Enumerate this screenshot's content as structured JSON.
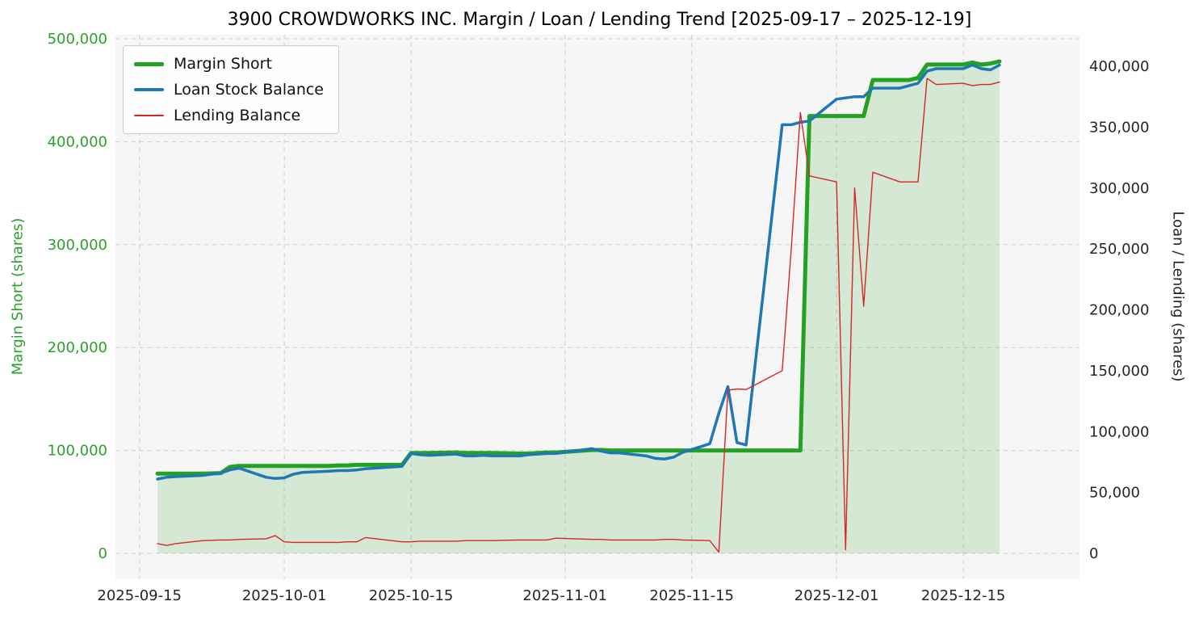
{
  "chart_data": {
    "type": "line",
    "title": "3900 CROWDWORKS INC. Margin / Loan / Lending Trend [2025-09-17 – 2025-12-19]",
    "plot_bg": "#f6f6f6",
    "grid": {
      "dashed": true,
      "color": "#cccccc"
    },
    "legend_position": "upper-left",
    "x_ticks": [
      "2025-09-15",
      "2025-10-01",
      "2025-10-15",
      "2025-11-01",
      "2025-11-15",
      "2025-12-01",
      "2025-12-15"
    ],
    "left_axis": {
      "label": "Margin Short (shares)",
      "color": "#2ca02c",
      "range": [
        0,
        500000
      ],
      "ticks": [
        0,
        100000,
        200000,
        300000,
        400000,
        500000
      ],
      "tick_labels": [
        "0",
        "100,000",
        "200,000",
        "300,000",
        "400,000",
        "500,000"
      ]
    },
    "right_axis": {
      "label": "Loan / Lending (shares)",
      "color": "#262626",
      "range": [
        0,
        400000
      ],
      "ticks": [
        0,
        50000,
        100000,
        150000,
        200000,
        250000,
        300000,
        350000,
        400000
      ],
      "tick_labels": [
        "0",
        "50,000",
        "100,000",
        "150,000",
        "200,000",
        "250,000",
        "300,000",
        "350,000",
        "400,000"
      ]
    },
    "x": [
      "2025-09-17",
      "2025-09-18",
      "2025-09-19",
      "2025-09-22",
      "2025-09-24",
      "2025-09-25",
      "2025-09-26",
      "2025-09-29",
      "2025-09-30",
      "2025-10-01",
      "2025-10-02",
      "2025-10-03",
      "2025-10-06",
      "2025-10-07",
      "2025-10-08",
      "2025-10-09",
      "2025-10-10",
      "2025-10-14",
      "2025-10-15",
      "2025-10-16",
      "2025-10-17",
      "2025-10-20",
      "2025-10-21",
      "2025-10-22",
      "2025-10-23",
      "2025-10-24",
      "2025-10-27",
      "2025-10-28",
      "2025-10-29",
      "2025-10-30",
      "2025-10-31",
      "2025-11-04",
      "2025-11-05",
      "2025-11-06",
      "2025-11-07",
      "2025-11-10",
      "2025-11-11",
      "2025-11-12",
      "2025-11-13",
      "2025-11-14",
      "2025-11-17",
      "2025-11-18",
      "2025-11-19",
      "2025-11-20",
      "2025-11-21",
      "2025-11-25",
      "2025-11-26",
      "2025-11-27",
      "2025-11-28",
      "2025-12-01",
      "2025-12-02",
      "2025-12-03",
      "2025-12-04",
      "2025-12-05",
      "2025-12-08",
      "2025-12-09",
      "2025-12-10",
      "2025-12-11",
      "2025-12-12",
      "2025-12-15",
      "2025-12-16",
      "2025-12-17",
      "2025-12-18",
      "2025-12-19"
    ],
    "series": [
      {
        "name": "Margin Short",
        "axis": "left",
        "color": "#23a123",
        "width": 5,
        "fill": true,
        "fill_opacity": 0.16,
        "values": [
          77500,
          77500,
          77500,
          77500,
          78000,
          84000,
          85000,
          85000,
          85000,
          85000,
          85000,
          85000,
          85000,
          85500,
          85500,
          86000,
          86000,
          86000,
          97500,
          97500,
          97500,
          98000,
          97500,
          97500,
          97500,
          97500,
          97000,
          97000,
          97500,
          98000,
          98000,
          100500,
          100500,
          100000,
          100000,
          100000,
          100000,
          100000,
          100000,
          100000,
          100000,
          100000,
          100000,
          100000,
          100000,
          100000,
          100000,
          100000,
          425000,
          425000,
          425000,
          425000,
          425000,
          460000,
          460000,
          460000,
          462000,
          475000,
          475000,
          475000,
          477000,
          475000,
          476000,
          478000
        ]
      },
      {
        "name": "Loan Stock Balance",
        "axis": "right",
        "color": "#1f77b4",
        "width": 3.5,
        "fill": false,
        "fill_opacity": 0,
        "values": [
          61000,
          62500,
          63000,
          64000,
          66000,
          68500,
          70000,
          62500,
          61500,
          62000,
          65000,
          66500,
          67500,
          68000,
          68000,
          68500,
          69500,
          71500,
          82000,
          81000,
          80500,
          81500,
          80000,
          80000,
          80500,
          80000,
          80000,
          81000,
          81500,
          82000,
          82000,
          86000,
          84000,
          82500,
          82500,
          80000,
          78000,
          77500,
          79000,
          83000,
          90000,
          115000,
          137000,
          91000,
          89000,
          352000,
          352000,
          354000,
          355000,
          373000,
          374000,
          375000,
          375000,
          382000,
          382000,
          384000,
          386000,
          396000,
          398000,
          398000,
          401000,
          398000,
          397000,
          401000
        ]
      },
      {
        "name": "Lending Balance",
        "axis": "right",
        "color": "#d62728",
        "width": 1.4,
        "fill": false,
        "fill_opacity": 0,
        "values": [
          8000,
          6500,
          8000,
          10500,
          11000,
          11000,
          11500,
          12000,
          14500,
          9500,
          9000,
          9000,
          9000,
          9000,
          9500,
          9500,
          13000,
          9500,
          9500,
          10000,
          10000,
          10000,
          10500,
          10500,
          10500,
          10500,
          11000,
          11000,
          11000,
          11000,
          12500,
          11500,
          11500,
          11000,
          11000,
          11000,
          11000,
          11500,
          11500,
          11000,
          10500,
          1000,
          134000,
          135000,
          134500,
          150000,
          250000,
          362000,
          310000,
          305000,
          3000,
          300000,
          203000,
          313000,
          305000,
          305000,
          305000,
          390000,
          385000,
          386000,
          384000,
          385000,
          385000,
          387000
        ]
      }
    ]
  }
}
